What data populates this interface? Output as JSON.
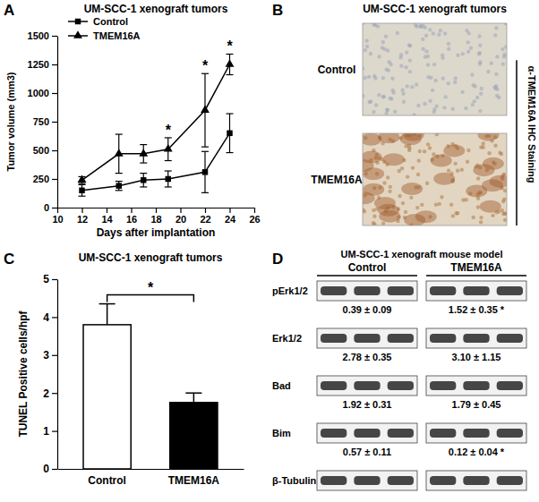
{
  "chart_data": [
    {
      "type": "line",
      "panel": "A",
      "title": "UM-SCC-1 xenograft tumors",
      "x_label": "Days after implantation",
      "y_label": "Tumor volume (mm3)",
      "xlim": [
        10,
        26
      ],
      "xticks": [
        10,
        12,
        14,
        16,
        18,
        20,
        22,
        24,
        26
      ],
      "ylim": [
        0,
        1500
      ],
      "yticks": [
        0,
        250,
        500,
        750,
        1000,
        1250,
        1500
      ],
      "legend": "upper left",
      "x": [
        12,
        15,
        17,
        19,
        22,
        24
      ],
      "series": [
        {
          "name": "Control",
          "color": "#000000",
          "marker": "square",
          "values": [
            150,
            190,
            240,
            250,
            310,
            650
          ],
          "errors": [
            50,
            40,
            60,
            70,
            180,
            170
          ]
        },
        {
          "name": "TMEM16A",
          "color": "#000000",
          "marker": "triangle",
          "values": [
            240,
            470,
            470,
            510,
            850,
            1250
          ],
          "errors": [
            30,
            170,
            80,
            100,
            320,
            90
          ]
        }
      ],
      "annotations": [
        {
          "text": "*",
          "x": 19
        },
        {
          "text": "*",
          "x": 22
        },
        {
          "text": "*",
          "x": 24
        }
      ]
    },
    {
      "type": "image",
      "panel": "B",
      "title": "UM-SCC-1 xenograft tumors",
      "rows": [
        "Control",
        "TMEM16A"
      ],
      "side_label": "α-TMEM16A IHC Staining"
    },
    {
      "type": "bar",
      "panel": "C",
      "title": "UM-SCC-1 xenograft tumors",
      "y_label": "TUNEL Positive cells/hpf",
      "categories": [
        "Control",
        "TMEM16A"
      ],
      "values": [
        3.8,
        1.75
      ],
      "errors": [
        0.55,
        0.25
      ],
      "colors": [
        "#ffffff",
        "#000000"
      ],
      "ylim": [
        0,
        5
      ],
      "yticks": [
        0,
        1,
        2,
        3,
        4,
        5
      ],
      "annotations": [
        {
          "text": "*"
        }
      ]
    },
    {
      "type": "blot",
      "panel": "D",
      "title": "UM-SCC-1 xenograft mouse model",
      "groups": [
        "Control",
        "TMEM16A"
      ],
      "rows": [
        {
          "label": "pErk1/2",
          "values": [
            "0.39 ± 0.09",
            "1.52 ± 0.35 *"
          ]
        },
        {
          "label": "Erk1/2",
          "values": [
            "2.78 ± 0.35",
            "3.10 ± 1.15"
          ]
        },
        {
          "label": "Bad",
          "values": [
            "1.92 ± 0.31",
            "1.79 ± 0.45"
          ]
        },
        {
          "label": "Bim",
          "values": [
            "0.57 ± 0.11",
            "0.12 ± 0.04 *"
          ]
        },
        {
          "label": "β-Tubulin"
        }
      ]
    }
  ]
}
